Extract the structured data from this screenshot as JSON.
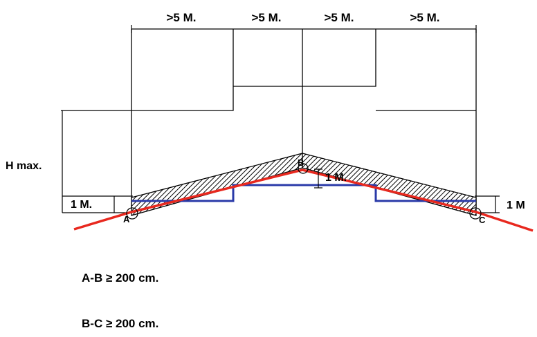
{
  "dimensions": {
    "top_spacings": [
      ">5 M.",
      ">5 M.",
      ">5 M.",
      ">5 M."
    ],
    "height_label": "H max.",
    "left_offset": "1 M.",
    "right_offset": "1 M",
    "ridge_offset": "1 M."
  },
  "points": {
    "a": "A",
    "b": "B",
    "c": "C"
  },
  "conditions": {
    "ab": "A-B ≥ 200 cm.",
    "bc": "B-C ≥ 200 cm."
  },
  "colors": {
    "line": "#000000",
    "red_line": "#e8281e",
    "blue_line": "#2a3aa8",
    "hatch": "#000000"
  }
}
